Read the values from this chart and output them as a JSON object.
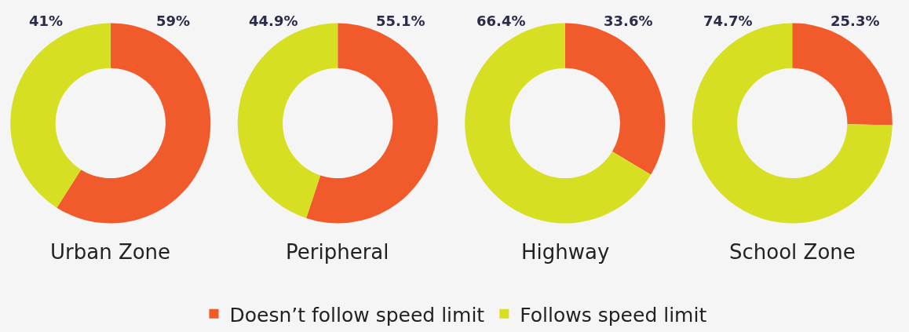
{
  "chart_data": [
    {
      "type": "donut",
      "title": "Urban Zone",
      "categories": [
        "Doesn’t follow speed limit",
        "Follows speed limit"
      ],
      "values": [
        59,
        41
      ],
      "colors": [
        "#f15a2b",
        "#d7df23"
      ],
      "value_labels": [
        "59%",
        "41%"
      ],
      "legend": "bottom"
    },
    {
      "type": "donut",
      "title": "Peripheral",
      "values": [
        55.1,
        44.9
      ],
      "colors": [
        "#f15a2b",
        "#d7df23"
      ],
      "value_labels": [
        "55.1%",
        "44.9%"
      ]
    },
    {
      "type": "donut",
      "title": "Highway",
      "values": [
        33.6,
        66.4
      ],
      "colors": [
        "#f15a2b",
        "#d7df23"
      ],
      "value_labels": [
        "33.6%",
        "66.4%"
      ]
    },
    {
      "type": "donut",
      "title": "School Zone",
      "values": [
        25.3,
        74.7
      ],
      "colors": [
        "#f15a2b",
        "#d7df23"
      ],
      "value_labels": [
        "25.3%",
        "74.7%"
      ]
    }
  ]
}
